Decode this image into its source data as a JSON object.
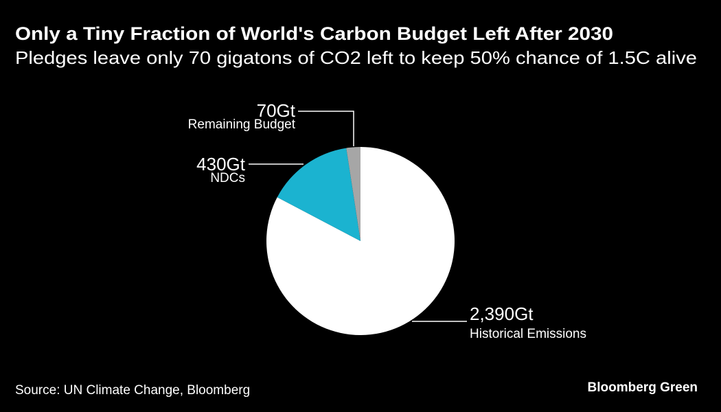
{
  "chart_data": {
    "type": "pie",
    "title": "Only a Tiny Fraction of World's Carbon Budget Left After 2030",
    "subtitle": "Pledges leave only 70 gigatons of CO2 left to keep 50% chance of 1.5C alive",
    "slices": [
      {
        "label": "Historical Emissions",
        "value": 2390,
        "value_label": "2,390Gt",
        "color": "#ffffff"
      },
      {
        "label": "NDCs",
        "value": 430,
        "value_label": "430Gt",
        "color": "#1bb3d0"
      },
      {
        "label": "Remaining Budget",
        "value": 70,
        "value_label": "70Gt",
        "color": "#a6a6a6"
      }
    ],
    "start_angle": "12 o'clock",
    "direction": "clockwise",
    "background": "#000000"
  },
  "footer": {
    "source": "Source: UN Climate Change, Bloomberg",
    "brand": "Bloomberg Green"
  }
}
